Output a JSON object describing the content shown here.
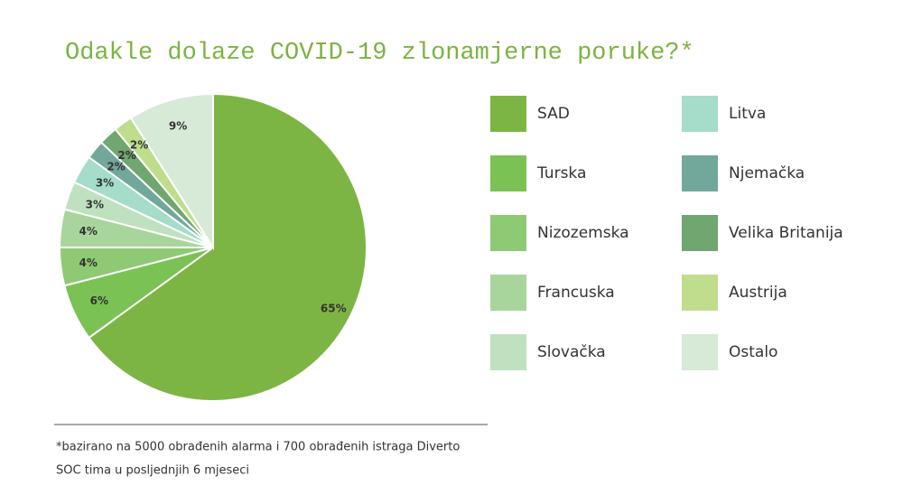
{
  "chart_data": {
    "type": "pie",
    "title": "Odakle dolaze COVID-19 zlonamjerne poruke?*",
    "categories": [
      "SAD",
      "Turska",
      "Nizozemska",
      "Francuska",
      "Slovačka",
      "Litva",
      "Njemačka",
      "Velika Britanija",
      "Austrija",
      "Ostalo"
    ],
    "values": [
      65,
      6,
      4,
      4,
      3,
      3,
      2,
      2,
      2,
      9
    ],
    "value_labels": [
      "65%",
      "6%",
      "4%",
      "4%",
      "3%",
      "3%",
      "2%",
      "2%",
      "2%",
      "9%"
    ],
    "colors": [
      "#7db544",
      "#7bc255",
      "#8ec973",
      "#a8d59c",
      "#bfe1bf",
      "#a5dcca",
      "#72a89b",
      "#70a66f",
      "#bfdd8d",
      "#d7e9d7"
    ],
    "footnote": [
      "*bazirano na 5000 obrađenih alarma i 700 obrađenih istraga Diverto",
      "SOC tima u posljednjih 6 mjeseci"
    ]
  }
}
